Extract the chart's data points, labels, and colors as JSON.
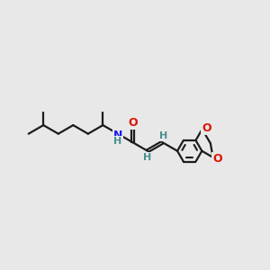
{
  "bg_color": "#e8e8e8",
  "bond_color": "#1c1c1c",
  "N_color": "#1a1aee",
  "O_color": "#dd1100",
  "H_color": "#4a9090",
  "lw": 1.6,
  "figsize": [
    3.0,
    3.0
  ],
  "dpi": 100,
  "xlim": [
    -0.5,
    10.5
  ],
  "ylim": [
    2.5,
    7.5
  ]
}
